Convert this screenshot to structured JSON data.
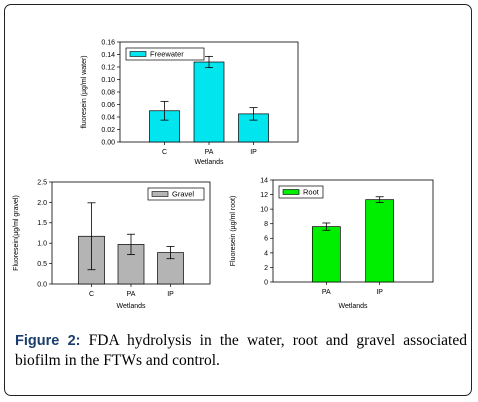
{
  "caption": {
    "label": "Figure 2:",
    "text": " FDA hydrolysis in the water, root and gravel associated biofilm in the FTWs and control."
  },
  "chart_data": [
    {
      "type": "bar",
      "categories": [
        "C",
        "PA",
        "IP"
      ],
      "values": [
        0.05,
        0.128,
        0.045
      ],
      "errors": [
        0.015,
        0.009,
        0.01
      ],
      "xlabel": "Wetlands",
      "ylabel": "fluoresein (µg/ml water)",
      "ylim": [
        0,
        0.16
      ],
      "yticks": [
        "0.00",
        "0.02",
        "0.04",
        "0.06",
        "0.08",
        "0.10",
        "0.12",
        "0.14",
        "0.16"
      ],
      "legend": "Freewater",
      "legend_position": "top-left",
      "color": "#00e5ee",
      "grid": false
    },
    {
      "type": "bar",
      "categories": [
        "C",
        "PA",
        "IP"
      ],
      "values": [
        1.17,
        0.97,
        0.77
      ],
      "errors": [
        0.82,
        0.25,
        0.15
      ],
      "xlabel": "Wetlands",
      "ylabel": "Fluoresein(µg/ml gravel)",
      "ylim": [
        0,
        2.5
      ],
      "yticks": [
        "0.0",
        "0.5",
        "1.0",
        "1.5",
        "2.0",
        "2.5"
      ],
      "legend": "Gravel",
      "legend_position": "top-right",
      "color": "#b4b4b4",
      "grid": false
    },
    {
      "type": "bar",
      "categories": [
        "PA",
        "IP"
      ],
      "values": [
        7.6,
        11.3
      ],
      "errors": [
        0.5,
        0.4
      ],
      "xlabel": "Wetlands",
      "ylabel": "Fluoresein (µg/ml root)",
      "ylim": [
        0,
        14
      ],
      "yticks": [
        "0",
        "2",
        "4",
        "6",
        "8",
        "10",
        "12",
        "14"
      ],
      "legend": "Root",
      "legend_position": "top-left",
      "color": "#00ee00",
      "grid": false
    }
  ]
}
